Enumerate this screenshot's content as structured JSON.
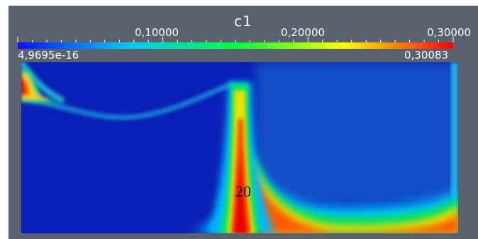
{
  "colorbar": {
    "title": "c1",
    "ticks": [
      "0,10000",
      "0,20000",
      "0,30000"
    ],
    "min_label": "4,9695e-16",
    "max_label": "0,30083",
    "colors": [
      "#0a10ff",
      "#00c8ff",
      "#00ff40",
      "#ffff00",
      "#ff0000"
    ]
  },
  "annotation": "20",
  "colors": {
    "background": "#5c6170",
    "field_low": "#0a1fb5",
    "field_high": "#e60000"
  }
}
